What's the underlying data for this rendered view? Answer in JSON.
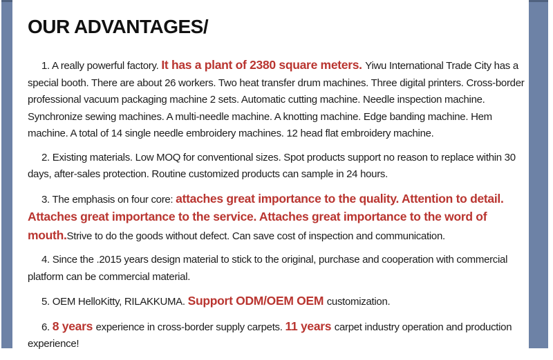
{
  "page": {
    "title": "OUR ADVANTAGES/"
  },
  "colors": {
    "accent_red": "#b93530",
    "sidebar_blue": "#6d82a6",
    "body_text": "#1b1b1b"
  },
  "paragraphs": [
    {
      "runs": [
        {
          "style": "normal",
          "text": "1. A really powerful factory. "
        },
        {
          "style": "highlight",
          "text": "It has a plant of 2380 square meters. "
        },
        {
          "style": "normal",
          "text": "Yiwu International Trade City has a special booth. There are about 26 workers. Two heat transfer drum machines. Three digital printers. Cross-border professional vacuum packaging machine 2 sets. Automatic cutting machine. Needle inspection machine. Synchronize sewing machines. A multi-needle machine. A knotting machine. Edge banding machine. Hem machine. A total of 14 single needle embroidery machines. 12 head flat embroidery machine."
        }
      ]
    },
    {
      "runs": [
        {
          "style": "normal",
          "text": "2. Existing materials. Low MOQ for conventional sizes. Spot products support no reason to replace within 30 days, after-sales protection. Routine customized products can sample in 24 hours."
        }
      ]
    },
    {
      "runs": [
        {
          "style": "normal",
          "text": "3. The emphasis on four core: "
        },
        {
          "style": "highlight",
          "text": "attaches great importance to the quality. Attention to detail. Attaches great importance to the service. Attaches great importance to the word of mouth."
        },
        {
          "style": "normal",
          "text": "Strive to do the goods without defect.  Can save cost of inspection and communication."
        }
      ]
    },
    {
      "runs": [
        {
          "style": "normal",
          "text": "4. Since the .2015 years design material to stick to the original, purchase and cooperation with commercial platform can be commercial material."
        }
      ]
    },
    {
      "runs": [
        {
          "style": "normal",
          "text": "5. OEM HelloKitty, RILAKKUMA. "
        },
        {
          "style": "highlight",
          "text": "Support ODM/OEM OEM "
        },
        {
          "style": "normal",
          "text": "customization."
        }
      ]
    },
    {
      "runs": [
        {
          "style": "normal",
          "text": "6. "
        },
        {
          "style": "highlight",
          "text": "8 years "
        },
        {
          "style": "normal",
          "text": "experience in cross-border supply carpets. "
        },
        {
          "style": "highlight",
          "text": "11 years "
        },
        {
          "style": "normal",
          "text": "carpet industry operation and production experience!"
        }
      ]
    }
  ]
}
